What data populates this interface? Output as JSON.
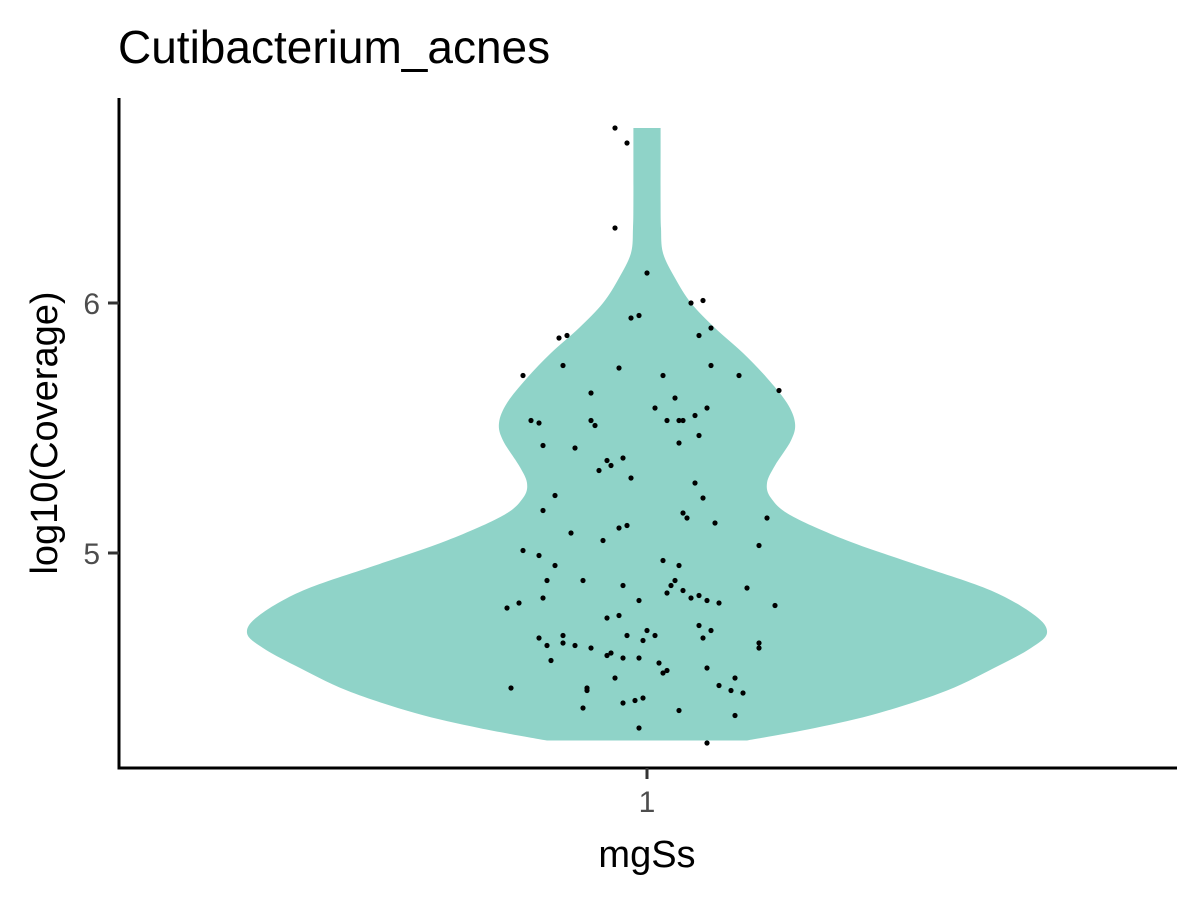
{
  "chart_data": {
    "type": "violin",
    "title": "Cutibacterium_acnes",
    "xlabel": "mgSs",
    "ylabel": "log10(Coverage)",
    "categories": [
      "1"
    ],
    "yticks": [
      5,
      6
    ],
    "ylim": [
      4.14,
      6.82
    ],
    "grid": false,
    "legend": "none",
    "colors": {
      "violin": "#8fd3c8",
      "point": "#000000",
      "axis": "#000000"
    },
    "violin": {
      "category": "1",
      "ymin": 4.25,
      "ymax": 6.7,
      "profile": [
        [
          4.25,
          0.25
        ],
        [
          4.3,
          0.42
        ],
        [
          4.36,
          0.58
        ],
        [
          4.45,
          0.75
        ],
        [
          4.55,
          0.88
        ],
        [
          4.62,
          0.96
        ],
        [
          4.68,
          1.0
        ],
        [
          4.75,
          0.97
        ],
        [
          4.85,
          0.86
        ],
        [
          4.95,
          0.68
        ],
        [
          5.05,
          0.5
        ],
        [
          5.15,
          0.36
        ],
        [
          5.22,
          0.31
        ],
        [
          5.28,
          0.3
        ],
        [
          5.35,
          0.32
        ],
        [
          5.45,
          0.36
        ],
        [
          5.52,
          0.37
        ],
        [
          5.6,
          0.35
        ],
        [
          5.7,
          0.3
        ],
        [
          5.8,
          0.24
        ],
        [
          5.9,
          0.17
        ],
        [
          6.0,
          0.11
        ],
        [
          6.1,
          0.07
        ],
        [
          6.2,
          0.04
        ],
        [
          6.3,
          0.035
        ],
        [
          6.4,
          0.034
        ],
        [
          6.6,
          0.034
        ],
        [
          6.7,
          0.034
        ]
      ]
    },
    "points": [
      [
        -0.08,
        6.7
      ],
      [
        -0.05,
        6.64
      ],
      [
        -0.08,
        6.3
      ],
      [
        0.0,
        6.12
      ],
      [
        0.11,
        6.0
      ],
      [
        0.14,
        6.01
      ],
      [
        0.16,
        5.9
      ],
      [
        0.13,
        5.87
      ],
      [
        -0.04,
        5.94
      ],
      [
        -0.02,
        5.95
      ],
      [
        -0.22,
        5.86
      ],
      [
        -0.2,
        5.87
      ],
      [
        -0.21,
        5.75
      ],
      [
        -0.07,
        5.74
      ],
      [
        0.16,
        5.75
      ],
      [
        -0.31,
        5.71
      ],
      [
        0.23,
        5.71
      ],
      [
        0.33,
        5.65
      ],
      [
        0.04,
        5.71
      ],
      [
        -0.14,
        5.64
      ],
      [
        0.07,
        5.62
      ],
      [
        -0.29,
        5.53
      ],
      [
        -0.27,
        5.52
      ],
      [
        -0.14,
        5.53
      ],
      [
        -0.13,
        5.51
      ],
      [
        0.02,
        5.58
      ],
      [
        0.09,
        5.53
      ],
      [
        0.12,
        5.55
      ],
      [
        0.15,
        5.58
      ],
      [
        0.05,
        5.53
      ],
      [
        0.08,
        5.53
      ],
      [
        0.13,
        5.47
      ],
      [
        -0.26,
        5.43
      ],
      [
        -0.18,
        5.42
      ],
      [
        0.08,
        5.44
      ],
      [
        -0.1,
        5.37
      ],
      [
        -0.09,
        5.35
      ],
      [
        -0.12,
        5.33
      ],
      [
        -0.06,
        5.38
      ],
      [
        -0.04,
        5.3
      ],
      [
        0.12,
        5.28
      ],
      [
        0.14,
        5.22
      ],
      [
        -0.23,
        5.23
      ],
      [
        -0.26,
        5.17
      ],
      [
        0.09,
        5.16
      ],
      [
        0.1,
        5.14
      ],
      [
        0.17,
        5.12
      ],
      [
        0.3,
        5.14
      ],
      [
        -0.19,
        5.08
      ],
      [
        -0.07,
        5.1
      ],
      [
        -0.05,
        5.11
      ],
      [
        -0.11,
        5.05
      ],
      [
        0.28,
        5.03
      ],
      [
        -0.31,
        5.01
      ],
      [
        -0.27,
        4.99
      ],
      [
        -0.23,
        4.95
      ],
      [
        0.04,
        4.97
      ],
      [
        0.08,
        4.95
      ],
      [
        -0.25,
        4.89
      ],
      [
        -0.16,
        4.89
      ],
      [
        -0.06,
        4.87
      ],
      [
        0.06,
        4.87
      ],
      [
        0.07,
        4.89
      ],
      [
        0.09,
        4.85
      ],
      [
        0.05,
        4.84
      ],
      [
        0.11,
        4.82
      ],
      [
        0.13,
        4.83
      ],
      [
        0.25,
        4.86
      ],
      [
        -0.35,
        4.78
      ],
      [
        -0.32,
        4.8
      ],
      [
        -0.26,
        4.82
      ],
      [
        -0.02,
        4.81
      ],
      [
        0.18,
        4.8
      ],
      [
        0.15,
        4.81
      ],
      [
        0.32,
        4.79
      ],
      [
        -0.1,
        4.74
      ],
      [
        -0.07,
        4.75
      ],
      [
        0.13,
        4.71
      ],
      [
        0.16,
        4.69
      ],
      [
        -0.27,
        4.66
      ],
      [
        -0.25,
        4.63
      ],
      [
        -0.21,
        4.67
      ],
      [
        -0.21,
        4.64
      ],
      [
        -0.18,
        4.63
      ],
      [
        -0.14,
        4.62
      ],
      [
        -0.05,
        4.67
      ],
      [
        0.0,
        4.69
      ],
      [
        0.02,
        4.67
      ],
      [
        -0.01,
        4.65
      ],
      [
        0.14,
        4.66
      ],
      [
        0.28,
        4.64
      ],
      [
        0.28,
        4.62
      ],
      [
        -0.24,
        4.57
      ],
      [
        -0.09,
        4.6
      ],
      [
        -0.06,
        4.58
      ],
      [
        -0.02,
        4.58
      ],
      [
        -0.1,
        4.59
      ],
      [
        0.03,
        4.56
      ],
      [
        0.05,
        4.53
      ],
      [
        0.04,
        4.52
      ],
      [
        0.15,
        4.54
      ],
      [
        -0.08,
        4.5
      ],
      [
        0.18,
        4.47
      ],
      [
        0.22,
        4.5
      ],
      [
        -0.34,
        4.46
      ],
      [
        -0.15,
        4.46
      ],
      [
        -0.15,
        4.45
      ],
      [
        0.21,
        4.45
      ],
      [
        0.24,
        4.44
      ],
      [
        -0.06,
        4.4
      ],
      [
        -0.03,
        4.41
      ],
      [
        -0.01,
        4.42
      ],
      [
        -0.16,
        4.38
      ],
      [
        0.08,
        4.37
      ],
      [
        0.22,
        4.35
      ],
      [
        -0.02,
        4.3
      ],
      [
        0.15,
        4.24
      ]
    ]
  }
}
